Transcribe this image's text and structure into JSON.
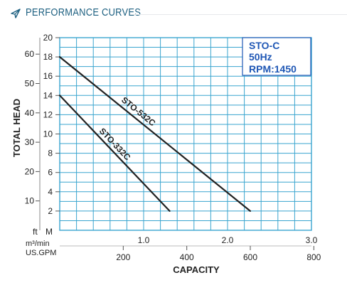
{
  "header": {
    "title": "PERFORMANCE CURVES",
    "icon": "paper-plane-icon"
  },
  "chart_data": {
    "type": "line",
    "info_box": [
      "STO-C",
      "50Hz",
      "RPM:1450"
    ],
    "y_label": "TOTAL HEAD",
    "y_ft_ticks": [
      "10",
      "20",
      "30",
      "40",
      "50",
      "60"
    ],
    "y_m_ticks": [
      "2",
      "4",
      "6",
      "8",
      "10",
      "12",
      "14",
      "16",
      "18",
      "20"
    ],
    "y_ft_unit": "ft",
    "y_m_unit": "M",
    "x_m3_unit": "m³/min",
    "x_gpm_unit": "US.GPM",
    "x_m3_ticks": [
      "1.0",
      "2.0",
      "3.0"
    ],
    "x_gpm_ticks": [
      "200",
      "400",
      "600",
      "800"
    ],
    "x_label": "CAPACITY",
    "xlim_m3": [
      0,
      3.0
    ],
    "ylim_m": [
      0,
      20
    ],
    "grid": true,
    "series": [
      {
        "name": "STO-532C",
        "x": [
          0,
          2.27
        ],
        "y": [
          18,
          2
        ]
      },
      {
        "name": "STO-332C",
        "x": [
          0,
          1.31
        ],
        "y": [
          14,
          2
        ]
      }
    ],
    "colors": {
      "grid": "#3aa5cf",
      "curve": "#222222",
      "box": "#1f57b5",
      "header": "#1c5f80"
    }
  }
}
